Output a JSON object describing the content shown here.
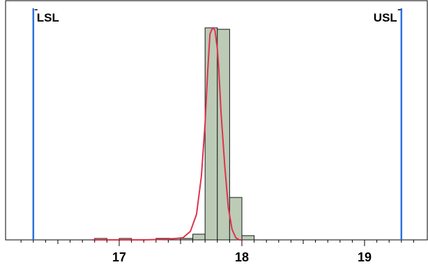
{
  "chart_data": {
    "type": "bar",
    "title": "",
    "xlabel": "",
    "ylabel": "",
    "xlim": [
      16.2,
      19.4
    ],
    "ylim": [
      0,
      1
    ],
    "x_ticks": [
      "17",
      "18",
      "19"
    ],
    "x_tick_values": [
      17,
      18,
      19
    ],
    "minor_tick_step": 0.1,
    "spec_limits": [
      {
        "label": "LSL",
        "value": 16.3,
        "color": "#2f6fdc"
      },
      {
        "label": "USL",
        "value": 19.3,
        "color": "#2f6fdc"
      }
    ],
    "histogram": {
      "bin_edges": [
        16.8,
        16.9,
        17.0,
        17.1,
        17.2,
        17.3,
        17.4,
        17.5,
        17.6,
        17.7,
        17.8,
        17.9,
        18.0,
        18.1
      ],
      "values": [
        0.007,
        0,
        0.007,
        0,
        0,
        0.007,
        0.007,
        0.007,
        0.027,
        1.0,
        0.993,
        0.2,
        0.02
      ],
      "color": "#bccbb6"
    },
    "density_curve": {
      "color": "#e0314c",
      "x": [
        16.78,
        17.0,
        17.2,
        17.4,
        17.52,
        17.58,
        17.63,
        17.67,
        17.7,
        17.72,
        17.74,
        17.76,
        17.78,
        17.8,
        17.81,
        17.83,
        17.86,
        17.89,
        17.92,
        17.95,
        17.98,
        18.0
      ],
      "y": [
        0,
        0,
        0,
        0.003,
        0.01,
        0.04,
        0.12,
        0.3,
        0.55,
        0.78,
        0.97,
        1.0,
        0.99,
        0.9,
        0.82,
        0.6,
        0.35,
        0.15,
        0.05,
        0.01,
        0,
        0
      ]
    }
  }
}
